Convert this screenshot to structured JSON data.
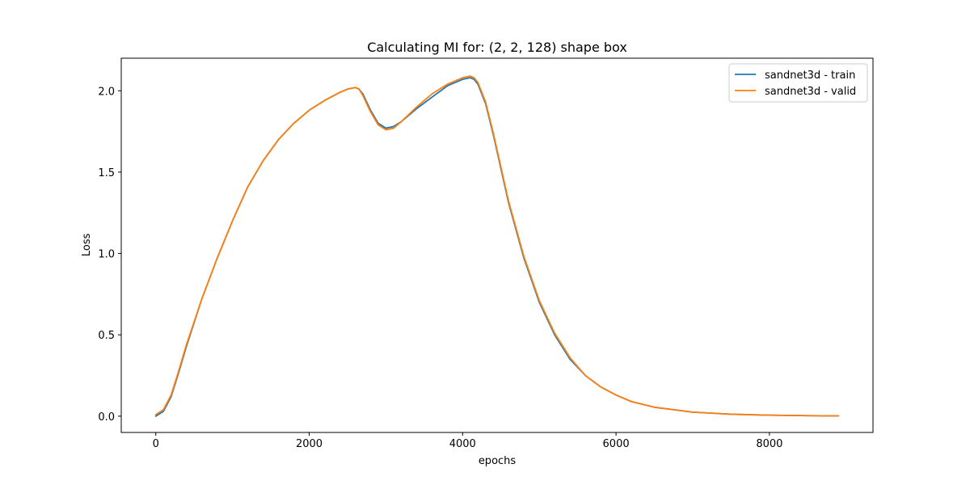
{
  "chart_data": {
    "type": "line",
    "title": "Calculating MI for: (2, 2, 128) shape box",
    "xlabel": "epochs",
    "ylabel": "Loss",
    "xlim": [
      -450,
      9350
    ],
    "ylim": [
      -0.1,
      2.2
    ],
    "xticks": [
      0,
      2000,
      4000,
      6000,
      8000
    ],
    "yticks": [
      0.0,
      0.5,
      1.0,
      1.5,
      2.0
    ],
    "xtick_labels": [
      "0",
      "2000",
      "4000",
      "6000",
      "8000"
    ],
    "ytick_labels": [
      "0.0",
      "0.5",
      "1.0",
      "1.5",
      "2.0"
    ],
    "grid": false,
    "legend_position": "top-right",
    "series": [
      {
        "name": "sandnet3d - train",
        "color": "#1f77b4",
        "x": [
          0,
          100,
          200,
          300,
          400,
          600,
          800,
          1000,
          1200,
          1400,
          1600,
          1800,
          2000,
          2200,
          2400,
          2500,
          2600,
          2650,
          2700,
          2800,
          2900,
          3000,
          3100,
          3200,
          3400,
          3600,
          3800,
          3900,
          4000,
          4100,
          4150,
          4200,
          4300,
          4400,
          4500,
          4600,
          4800,
          5000,
          5200,
          5400,
          5600,
          5800,
          6000,
          6200,
          6500,
          7000,
          7500,
          8000,
          8500,
          8900
        ],
        "y": [
          0.0,
          0.03,
          0.12,
          0.27,
          0.43,
          0.72,
          0.97,
          1.2,
          1.41,
          1.57,
          1.7,
          1.8,
          1.88,
          1.94,
          1.99,
          2.01,
          2.02,
          2.01,
          1.98,
          1.88,
          1.8,
          1.77,
          1.78,
          1.81,
          1.89,
          1.96,
          2.03,
          2.05,
          2.07,
          2.08,
          2.07,
          2.04,
          1.92,
          1.73,
          1.52,
          1.31,
          0.97,
          0.7,
          0.5,
          0.35,
          0.25,
          0.18,
          0.13,
          0.09,
          0.055,
          0.025,
          0.012,
          0.006,
          0.003,
          0.002
        ]
      },
      {
        "name": "sandnet3d - valid",
        "color": "#ff7f0e",
        "x": [
          0,
          100,
          200,
          300,
          400,
          600,
          800,
          1000,
          1200,
          1400,
          1600,
          1800,
          2000,
          2200,
          2400,
          2500,
          2600,
          2650,
          2700,
          2800,
          2900,
          3000,
          3100,
          3200,
          3400,
          3600,
          3800,
          3900,
          4000,
          4100,
          4150,
          4200,
          4300,
          4400,
          4500,
          4600,
          4800,
          5000,
          5200,
          5400,
          5600,
          5800,
          6000,
          6200,
          6500,
          7000,
          7500,
          8000,
          8500,
          8900
        ],
        "y": [
          0.01,
          0.04,
          0.13,
          0.28,
          0.44,
          0.72,
          0.97,
          1.2,
          1.41,
          1.57,
          1.7,
          1.8,
          1.88,
          1.94,
          1.99,
          2.01,
          2.02,
          2.01,
          1.97,
          1.87,
          1.79,
          1.76,
          1.77,
          1.81,
          1.9,
          1.98,
          2.04,
          2.06,
          2.08,
          2.09,
          2.08,
          2.05,
          1.93,
          1.74,
          1.53,
          1.32,
          0.98,
          0.71,
          0.51,
          0.36,
          0.25,
          0.18,
          0.13,
          0.09,
          0.055,
          0.025,
          0.012,
          0.006,
          0.003,
          0.002
        ]
      }
    ]
  }
}
